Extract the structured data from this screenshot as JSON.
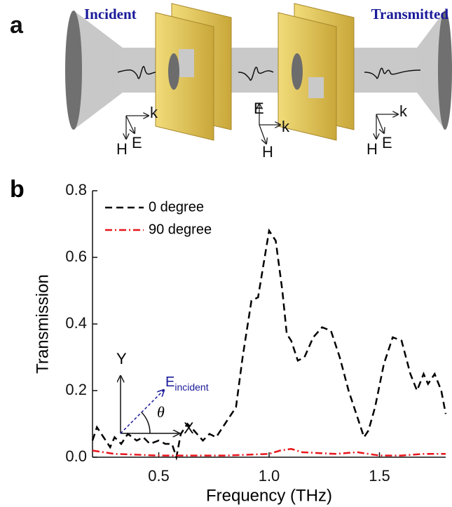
{
  "panel_a": {
    "label": "a",
    "incident": "Incident",
    "transmitted": "Transmitted",
    "triads": [
      {
        "k": "k",
        "E": "E",
        "H": "H"
      },
      {
        "k": "k",
        "E": "E",
        "H": "H"
      },
      {
        "k": "k",
        "E": "E",
        "H": "H"
      }
    ]
  },
  "chart_data": {
    "type": "line",
    "panel_label": "b",
    "x_label": "Frequency (THz)",
    "y_label": "Transmission",
    "xlim": [
      0.2,
      1.8
    ],
    "ylim": [
      0,
      0.8
    ],
    "xticks": [
      0.5,
      {
        "value": 1,
        "label": "1.0"
      },
      1.5
    ],
    "yticks": [
      {
        "value": 0,
        "label": "0.0"
      },
      0.2,
      0.4,
      0.6,
      0.8
    ],
    "legend": "upper left",
    "series": [
      {
        "name": "0 degree",
        "color": "#000000",
        "dash": "dashed",
        "x": [
          0.2,
          0.22,
          0.25,
          0.28,
          0.3,
          0.33,
          0.36,
          0.4,
          0.43,
          0.46,
          0.5,
          0.53,
          0.56,
          0.58,
          0.6,
          0.63,
          0.66,
          0.7,
          0.73,
          0.76,
          0.8,
          0.85,
          0.88,
          0.92,
          0.95,
          0.98,
          1.0,
          1.03,
          1.06,
          1.08,
          1.1,
          1.13,
          1.16,
          1.2,
          1.24,
          1.28,
          1.32,
          1.36,
          1.4,
          1.43,
          1.45,
          1.48,
          1.52,
          1.56,
          1.6,
          1.64,
          1.67,
          1.7,
          1.72,
          1.75,
          1.78,
          1.8
        ],
        "values": [
          0.05,
          0.09,
          0.06,
          0.03,
          0.06,
          0.04,
          0.07,
          0.05,
          0.06,
          0.04,
          0.05,
          0.04,
          0.04,
          0.0,
          0.07,
          0.1,
          0.08,
          0.05,
          0.07,
          0.06,
          0.1,
          0.15,
          0.3,
          0.47,
          0.48,
          0.6,
          0.68,
          0.65,
          0.5,
          0.37,
          0.35,
          0.29,
          0.3,
          0.36,
          0.39,
          0.38,
          0.3,
          0.2,
          0.12,
          0.06,
          0.08,
          0.15,
          0.28,
          0.36,
          0.35,
          0.25,
          0.2,
          0.25,
          0.22,
          0.25,
          0.2,
          0.13
        ]
      },
      {
        "name": "90 degree",
        "color": "#e8141b",
        "dash": "dashdot",
        "x": [
          0.2,
          0.3,
          0.5,
          0.8,
          1.0,
          1.05,
          1.1,
          1.15,
          1.3,
          1.4,
          1.5,
          1.6,
          1.7,
          1.8
        ],
        "values": [
          0.02,
          0.01,
          0.005,
          0.005,
          0.01,
          0.02,
          0.025,
          0.015,
          0.01,
          0.015,
          0.005,
          0.005,
          0.01,
          0.01
        ]
      }
    ],
    "inset": {
      "y_axis": "Y",
      "x_axis": "X",
      "field": "E",
      "field_subscript": "incident",
      "angle": "θ"
    }
  }
}
